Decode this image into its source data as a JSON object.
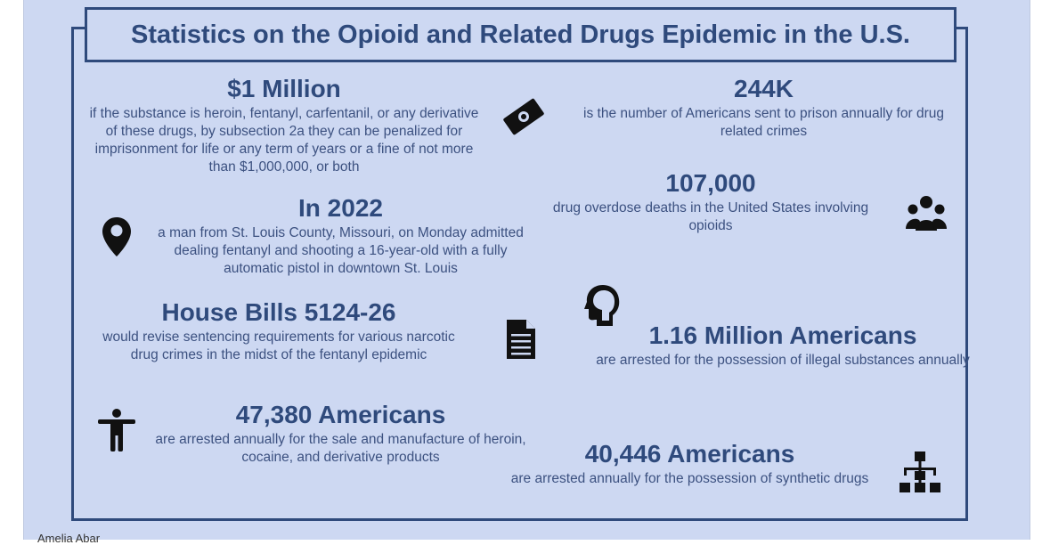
{
  "title": "Statistics on the Opioid and Related Drugs Epidemic in the U.S.",
  "stats": [
    {
      "id": "million",
      "headline": "$1 Million",
      "description": "if the substance is heroin, fentanyl, carfentanil, or any derivative of these drugs, by subsection 2a they can be penalized for imprisonment for life or any term of years or a fine of not more than $1,000,000, or both",
      "icon": "money-icon"
    },
    {
      "id": "prison",
      "headline": "244K",
      "description": "is the number of Americans sent to prison annually for drug related crimes"
    },
    {
      "id": "overdose",
      "headline": "107,000",
      "description": "drug overdose deaths in the United States involving opioids",
      "icon": "group-icon"
    },
    {
      "id": "y2022",
      "headline": "In 2022",
      "description": "a man from St. Louis County, Missouri, on Monday admitted dealing fentanyl and shooting a 16-year-old with a fully automatic pistol in downtown St. Louis",
      "icon": "location-pin-icon"
    },
    {
      "id": "bills",
      "headline": "House Bills 5124-26",
      "description": "would revise sentencing requirements for various narcotic drug crimes in the midst of the fentanyl epidemic",
      "icon": "document-icon"
    },
    {
      "id": "possession",
      "headline": "1.16 Million Americans",
      "description": "are arrested for the possession of illegal substances annually",
      "icon": "head-profile-icon"
    },
    {
      "id": "sale",
      "headline": "47,380 Americans",
      "description": "are arrested annually for the sale and manufacture of heroin, cocaine, and derivative products",
      "icon": "person-icon"
    },
    {
      "id": "synthetic",
      "headline": "40,446 Americans",
      "description": "are arrested annually for the possession of synthetic drugs",
      "icon": "hierarchy-icon"
    }
  ],
  "author": "Amelia Abar",
  "colors": {
    "background": "#cdd8f2",
    "accent": "#2f4a7c",
    "icon": "#111111"
  }
}
